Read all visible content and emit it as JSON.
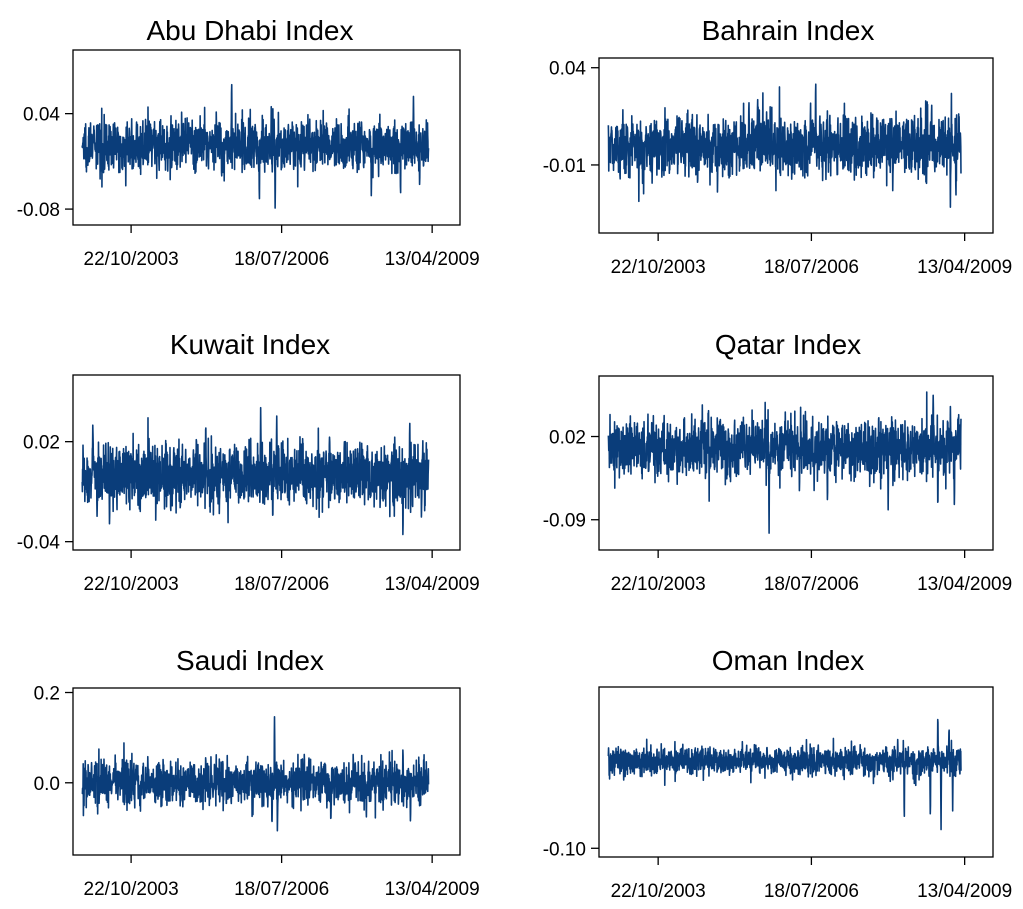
{
  "colors": {
    "series": "#0a3d7a",
    "axis": "#000000",
    "background": "#ffffff"
  },
  "chart_data": [
    {
      "type": "line",
      "title": "Abu Dhabi Index",
      "x_tick_labels": [
        "22/10/2003",
        "18/07/2006",
        "13/04/2009"
      ],
      "x_ticks": [
        "2003-10-22",
        "2006-07-18",
        "2009-04-13"
      ],
      "y_ticks": [
        0.04,
        -0.08
      ],
      "y_tick_labels": [
        "0.04",
        "-0.08"
      ],
      "xlim": [
        "2002-10-01",
        "2009-10-15"
      ],
      "ylim": [
        -0.1,
        0.12
      ],
      "x_range": [
        "2002-12-01",
        "2009-03-20"
      ],
      "base": 0.0,
      "noise": 0.012,
      "spikes": [
        {
          "x": "2004-09-01",
          "y": 0.03
        },
        {
          "x": "2005-08-20",
          "y": 0.09
        },
        {
          "x": "2005-05-10",
          "y": 0.05
        },
        {
          "x": "2005-06-15",
          "y": -0.04
        },
        {
          "x": "2006-02-20",
          "y": -0.077
        },
        {
          "x": "2006-05-10",
          "y": 0.05
        },
        {
          "x": "2006-06-05",
          "y": -0.085
        },
        {
          "x": "2006-09-01",
          "y": 0.03
        },
        {
          "x": "2008-03-05",
          "y": -0.07
        },
        {
          "x": "2008-09-15",
          "y": -0.065
        },
        {
          "x": "2008-12-10",
          "y": 0.065
        },
        {
          "x": "2009-01-20",
          "y": -0.06
        }
      ]
    },
    {
      "type": "line",
      "title": "Bahrain Index",
      "x_tick_labels": [
        "22/10/2003",
        "18/07/2006",
        "13/04/2009"
      ],
      "x_ticks": [
        "2003-10-22",
        "2006-07-18",
        "2009-04-13"
      ],
      "y_ticks": [
        0.04,
        -0.01
      ],
      "y_tick_labels": [
        "0.04",
        "-0.01"
      ],
      "xlim": [
        "2002-10-01",
        "2009-10-15"
      ],
      "ylim": [
        -0.045,
        0.045
      ],
      "x_range": [
        "2002-12-01",
        "2009-03-20"
      ],
      "base": 0.0,
      "noise": 0.006,
      "spikes": [
        {
          "x": "2005-06-05",
          "y": 0.027
        },
        {
          "x": "2005-08-01",
          "y": 0.03
        },
        {
          "x": "2006-08-15",
          "y": 0.037
        },
        {
          "x": "2005-01-10",
          "y": -0.012
        },
        {
          "x": "2006-02-01",
          "y": -0.015
        },
        {
          "x": "2007-04-01",
          "y": -0.016
        },
        {
          "x": "2008-09-10",
          "y": 0.022
        },
        {
          "x": "2009-01-10",
          "y": -0.032
        },
        {
          "x": "2009-02-15",
          "y": -0.03
        }
      ]
    },
    {
      "type": "line",
      "title": "Kuwait Index",
      "x_tick_labels": [
        "22/10/2003",
        "18/07/2006",
        "13/04/2009"
      ],
      "x_ticks": [
        "2003-10-22",
        "2006-07-18",
        "2009-04-13"
      ],
      "y_ticks": [
        0.02,
        -0.04
      ],
      "y_tick_labels": [
        "0.02",
        "-0.04"
      ],
      "xlim": [
        "2002-10-01",
        "2009-10-15"
      ],
      "ylim": [
        -0.045,
        0.06
      ],
      "x_range": [
        "2002-12-01",
        "2009-03-20"
      ],
      "base": 0.0,
      "noise": 0.007,
      "spikes": [
        {
          "x": "2003-02-10",
          "y": 0.035
        },
        {
          "x": "2003-03-10",
          "y": -0.025
        },
        {
          "x": "2003-06-01",
          "y": -0.035
        },
        {
          "x": "2005-03-01",
          "y": 0.035
        },
        {
          "x": "2006-03-01",
          "y": 0.045
        },
        {
          "x": "2006-05-20",
          "y": -0.03
        },
        {
          "x": "2006-06-15",
          "y": 0.04
        },
        {
          "x": "2007-06-01",
          "y": 0.025
        },
        {
          "x": "2008-10-01",
          "y": -0.04
        },
        {
          "x": "2008-11-15",
          "y": 0.035
        },
        {
          "x": "2009-02-01",
          "y": -0.03
        }
      ]
    },
    {
      "type": "line",
      "title": "Qatar Index",
      "x_tick_labels": [
        "22/10/2003",
        "18/07/2006",
        "13/04/2009"
      ],
      "x_ticks": [
        "2003-10-22",
        "2006-07-18",
        "2009-04-13"
      ],
      "y_ticks": [
        0.02,
        -0.09
      ],
      "y_tick_labels": [
        "0.02",
        "-0.09"
      ],
      "xlim": [
        "2002-10-01",
        "2009-10-15"
      ],
      "ylim": [
        -0.13,
        0.1
      ],
      "x_range": [
        "2002-12-01",
        "2009-03-20"
      ],
      "base": 0.005,
      "noise": 0.015,
      "spikes": [
        {
          "x": "2005-05-20",
          "y": 0.04
        },
        {
          "x": "2005-10-15",
          "y": -0.11
        },
        {
          "x": "2006-05-01",
          "y": -0.06
        },
        {
          "x": "2007-12-01",
          "y": -0.08
        },
        {
          "x": "2008-09-20",
          "y": 0.08
        },
        {
          "x": "2008-10-20",
          "y": -0.09
        },
        {
          "x": "2009-01-10",
          "y": 0.06
        },
        {
          "x": "2009-02-05",
          "y": -0.08
        }
      ]
    },
    {
      "type": "line",
      "title": "Saudi Index",
      "x_tick_labels": [
        "22/10/2003",
        "18/07/2006",
        "13/04/2009"
      ],
      "x_ticks": [
        "2003-10-22",
        "2006-07-18",
        "2009-04-13"
      ],
      "y_ticks": [
        0.2,
        0.0
      ],
      "y_tick_labels": [
        "0.2",
        "0.0"
      ],
      "xlim": [
        "2002-10-01",
        "2009-10-15"
      ],
      "ylim": [
        -0.16,
        0.21
      ],
      "x_range": [
        "2002-12-01",
        "2009-03-20"
      ],
      "base": 0.0,
      "noise": 0.018,
      "spikes": [
        {
          "x": "2003-02-01",
          "y": 0.045
        },
        {
          "x": "2004-02-10",
          "y": 0.06
        },
        {
          "x": "2005-03-01",
          "y": 0.07
        },
        {
          "x": "2006-05-15",
          "y": -0.1
        },
        {
          "x": "2006-06-01",
          "y": 0.16
        },
        {
          "x": "2006-06-20",
          "y": -0.12
        },
        {
          "x": "2007-01-15",
          "y": 0.07
        },
        {
          "x": "2007-06-10",
          "y": -0.1
        },
        {
          "x": "2008-02-01",
          "y": -0.08
        },
        {
          "x": "2008-10-01",
          "y": 0.09
        },
        {
          "x": "2008-11-20",
          "y": -0.1
        }
      ]
    },
    {
      "type": "line",
      "title": "Oman Index",
      "x_tick_labels": [
        "22/10/2003",
        "18/07/2006",
        "13/04/2009"
      ],
      "x_ticks": [
        "2003-10-22",
        "2006-07-18",
        "2009-04-13"
      ],
      "y_ticks": [
        -0.1
      ],
      "y_tick_labels": [
        "-0.10"
      ],
      "xlim": [
        "2002-10-01",
        "2009-10-15"
      ],
      "ylim": [
        -0.11,
        0.085
      ],
      "x_range": [
        "2002-12-01",
        "2009-03-20"
      ],
      "base": 0.0,
      "noise": 0.006,
      "spikes": [
        {
          "x": "2003-01-20",
          "y": 0.015
        },
        {
          "x": "2005-10-01",
          "y": 0.02
        },
        {
          "x": "2006-09-01",
          "y": 0.02
        },
        {
          "x": "2007-06-01",
          "y": 0.02
        },
        {
          "x": "2008-02-01",
          "y": 0.025
        },
        {
          "x": "2008-03-15",
          "y": -0.075
        },
        {
          "x": "2008-09-01",
          "y": -0.07
        },
        {
          "x": "2008-10-20",
          "y": 0.06
        },
        {
          "x": "2008-11-10",
          "y": -0.08
        },
        {
          "x": "2009-01-01",
          "y": 0.04
        },
        {
          "x": "2009-01-25",
          "y": -0.06
        }
      ]
    }
  ]
}
